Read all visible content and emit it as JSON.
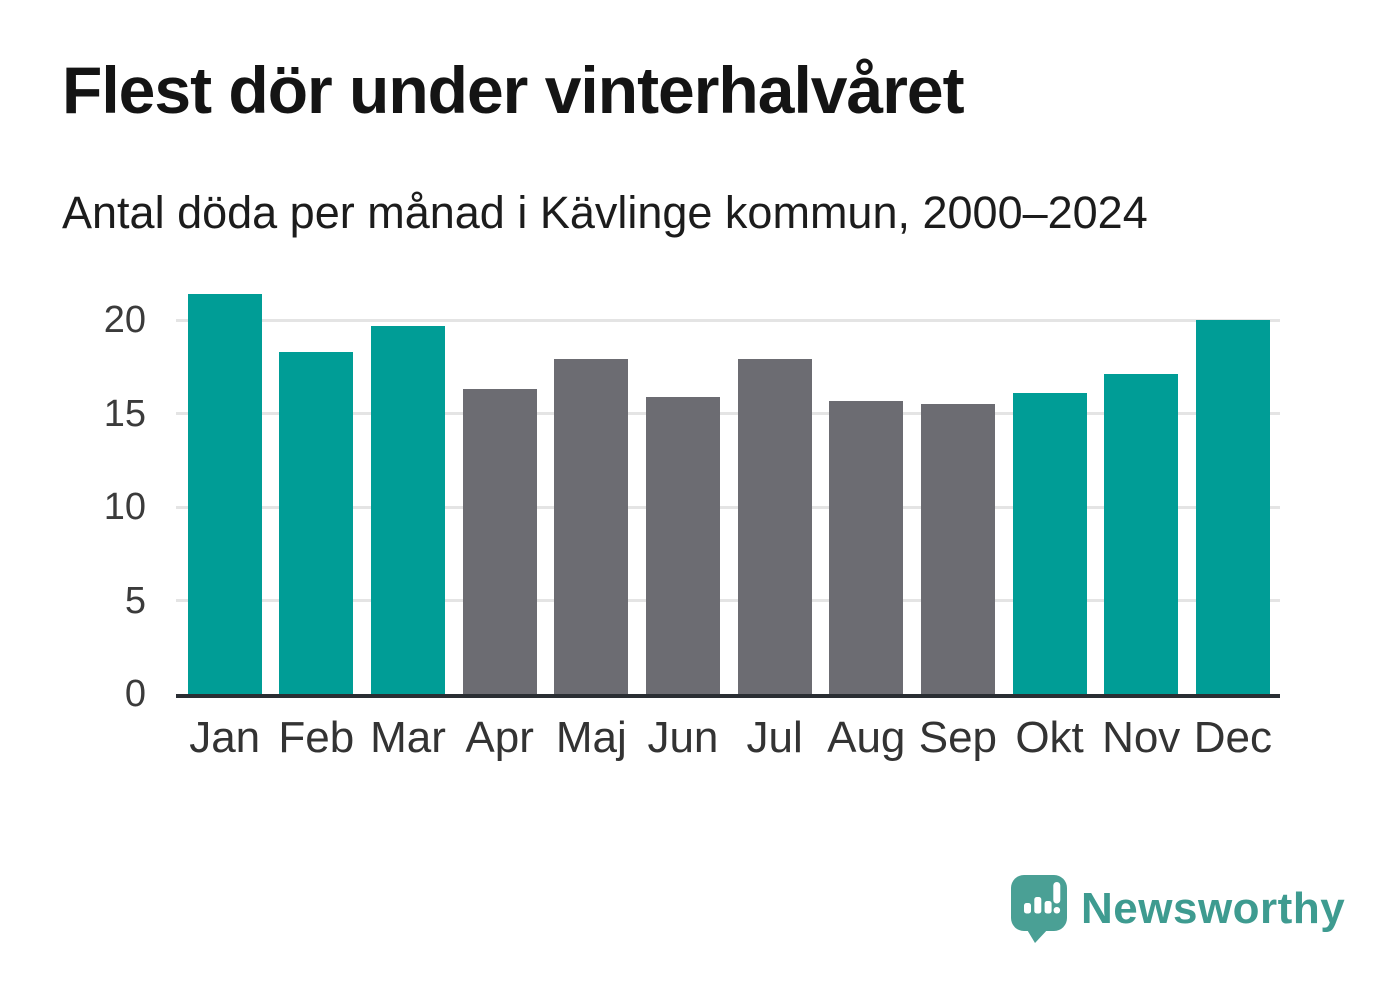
{
  "header": {
    "title": "Flest dör under vinterhalvåret",
    "subtitle": "Antal döda per månad i Kävlinge kommun, 2000–2024"
  },
  "chart_data": {
    "type": "bar",
    "title": "Flest dör under vinterhalvåret",
    "subtitle": "Antal döda per månad i Kävlinge kommun, 2000–2024",
    "categories": [
      "Jan",
      "Feb",
      "Mar",
      "Apr",
      "Maj",
      "Jun",
      "Jul",
      "Aug",
      "Sep",
      "Okt",
      "Nov",
      "Dec"
    ],
    "values": [
      21.4,
      18.3,
      19.7,
      16.3,
      17.9,
      15.9,
      17.9,
      15.7,
      15.5,
      16.1,
      17.1,
      20.0
    ],
    "bar_colors": [
      "teal",
      "teal",
      "teal",
      "gray",
      "gray",
      "gray",
      "gray",
      "gray",
      "gray",
      "teal",
      "teal",
      "teal"
    ],
    "xlabel": "",
    "ylabel": "",
    "yticks": [
      0,
      5,
      10,
      15,
      20
    ],
    "ylim": [
      0,
      21.6
    ],
    "grid": true,
    "legend": false
  },
  "colors": {
    "teal": "#009d96",
    "gray": "#6c6c72",
    "gridline": "#e4e4e4",
    "axis": "#2a2e33",
    "title_text": "#141414",
    "tick_text": "#3b3b3b",
    "logo_icon": "#4aa095",
    "logo_text": "#3e9b90"
  },
  "footer": {
    "brand": "Newsworthy"
  }
}
